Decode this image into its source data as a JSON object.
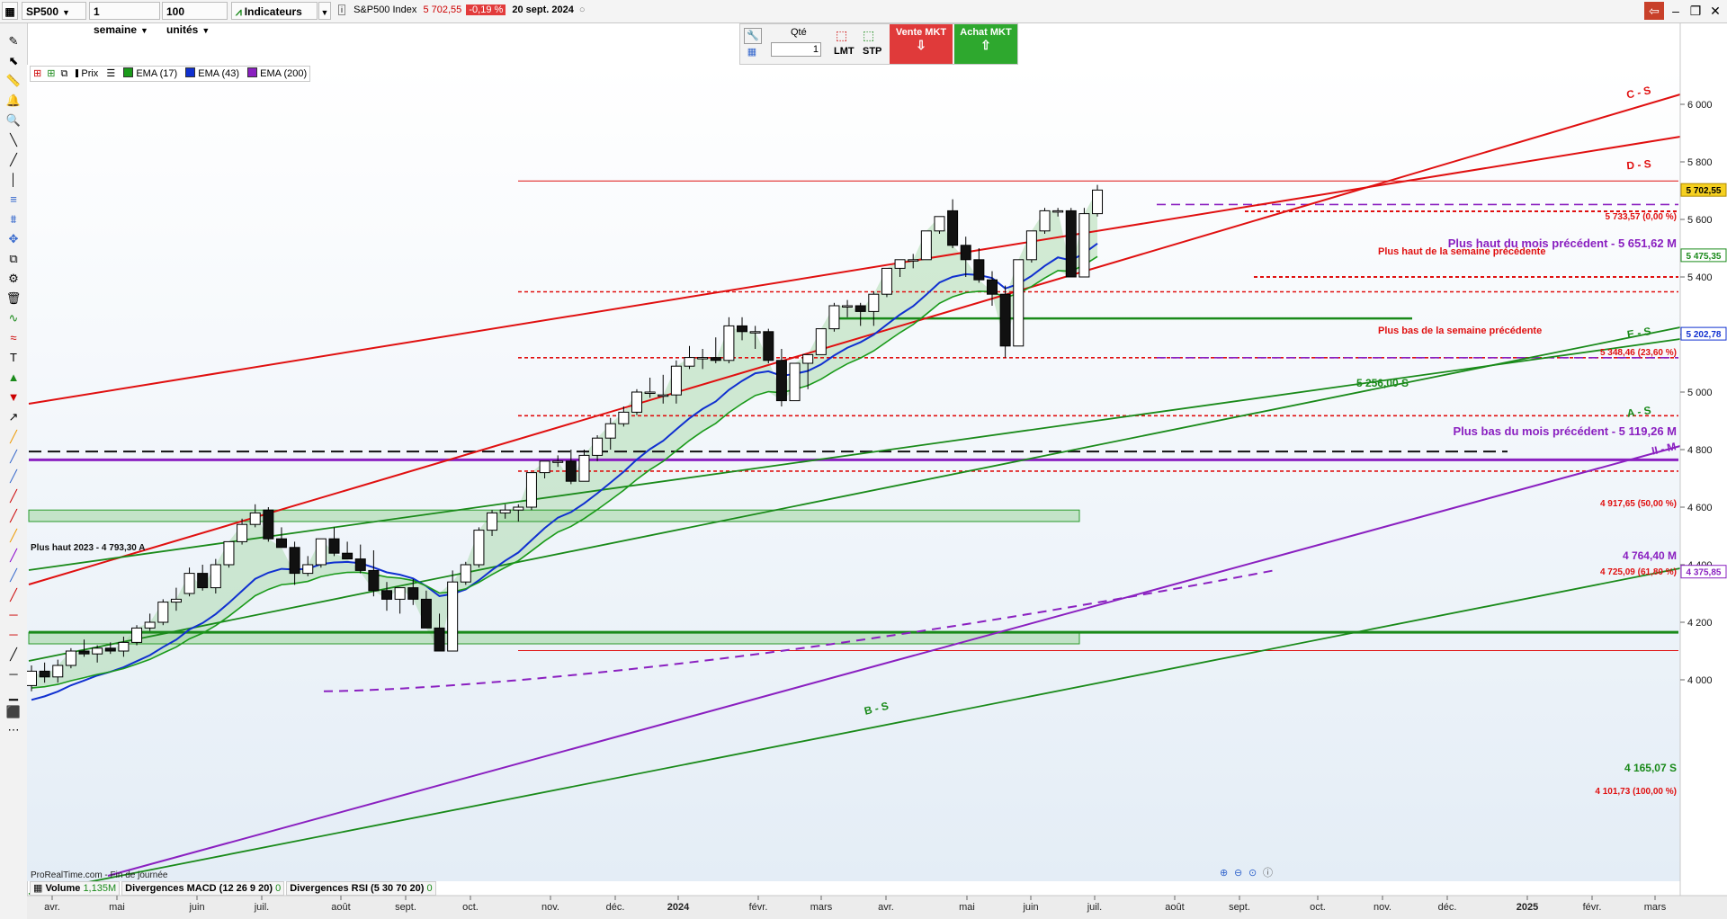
{
  "topbar": {
    "symbol": "SP500",
    "period": "1 semaine",
    "units": "100 unités",
    "indicators": "Indicateurs",
    "instrument_name": "S&P500 Index",
    "price": "5 702,55",
    "change": "-0,19 %",
    "date": "20 sept. 2024"
  },
  "order_panel": {
    "qty_label": "Qté",
    "qty_value": "1",
    "lmt": "LMT",
    "stp": "STP",
    "sell": "Vente MKT",
    "buy": "Achat MKT"
  },
  "legend": {
    "price": "Prix",
    "ema17": "EMA (17)",
    "ema43": "EMA (43)",
    "ema200": "EMA (200)"
  },
  "colors": {
    "ema17": "#1a9a1a",
    "ema43": "#1030d0",
    "ema200": "#8a20c0",
    "red": "#e01010",
    "accent_sell": "#e03a3a",
    "accent_buy": "#2ea82e"
  },
  "annotations": {
    "prev_month_high": "Plus haut du mois précédent - 5 651,62 M",
    "prev_week_high": "Plus haut de la semaine précédente",
    "prev_week_low": "Plus bas de la semaine précédente",
    "support_5256": "5 256,00 S",
    "prev_month_low": "Plus bas du mois précédent - 5 119,26 M",
    "high_2023": "Plus haut 2023 -  4 793,30 A",
    "level_4764": "4 764,40 M",
    "support_4165": "4 165,07 S",
    "fib0": "5 733,57 (0,00 %)",
    "fib236": "5 348,46 (23,60 %)",
    "fib50": "4 917,65 (50,00 %)",
    "fib618": "4 725,09 (61,80 %)",
    "fib100": "4 101,73 (100,00 %)",
    "line_cs": "C - S",
    "line_ds": "D - S",
    "line_es": "E - S",
    "line_as": "A - S",
    "line_bs": "B - S",
    "line_iim": "II - M"
  },
  "price_tags": {
    "last": "5 702,55",
    "ema17_value": "5 475,35",
    "ema43_value": "5 202,78",
    "ema200_value": "4 375,85"
  },
  "indicator_bar": {
    "volume_label": "Volume",
    "volume_value": "1,135M",
    "macd_label": "Divergences MACD (12 26 9 20)",
    "macd_value": "0",
    "rsi_label": "Divergences RSI (5 30 70 20)",
    "rsi_value": "0"
  },
  "footnote": "ProRealTime.com - Fin de journée",
  "y_ticks": [
    "6 000",
    "5 800",
    "5 600",
    "5 400",
    "5 200",
    "5 000",
    "4 800",
    "4 600",
    "4 400",
    "4 200",
    "4 000"
  ],
  "x_ticks": [
    "avr.",
    "mai",
    "juin",
    "juil.",
    "août",
    "sept.",
    "oct.",
    "nov.",
    "déc.",
    "2024",
    "févr.",
    "mars",
    "avr.",
    "mai",
    "juin",
    "juil.",
    "août",
    "sept.",
    "oct.",
    "nov.",
    "déc.",
    "2025",
    "févr.",
    "mars"
  ],
  "chart_data": {
    "type": "candlestick",
    "timeframe": "1 semaine",
    "ylim": [
      3930,
      6190
    ],
    "series_names": [
      "EMA (17)",
      "EMA (43)",
      "EMA (200)"
    ],
    "candles": [
      [
        3980,
        4050,
        3960,
        4030
      ],
      [
        4030,
        4060,
        3990,
        4010
      ],
      [
        4010,
        4070,
        3990,
        4050
      ],
      [
        4050,
        4110,
        4040,
        4100
      ],
      [
        4100,
        4140,
        4080,
        4090
      ],
      [
        4090,
        4120,
        4060,
        4110
      ],
      [
        4110,
        4130,
        4090,
        4100
      ],
      [
        4100,
        4150,
        4080,
        4130
      ],
      [
        4130,
        4190,
        4120,
        4180
      ],
      [
        4180,
        4230,
        4170,
        4200
      ],
      [
        4200,
        4280,
        4190,
        4270
      ],
      [
        4270,
        4320,
        4240,
        4280
      ],
      [
        4300,
        4390,
        4290,
        4370
      ],
      [
        4370,
        4400,
        4310,
        4320
      ],
      [
        4320,
        4420,
        4300,
        4400
      ],
      [
        4400,
        4480,
        4390,
        4480
      ],
      [
        4480,
        4560,
        4470,
        4540
      ],
      [
        4540,
        4610,
        4530,
        4580
      ],
      [
        4590,
        4600,
        4480,
        4490
      ],
      [
        4490,
        4530,
        4460,
        4460
      ],
      [
        4460,
        4480,
        4330,
        4370
      ],
      [
        4370,
        4430,
        4360,
        4400
      ],
      [
        4400,
        4470,
        4390,
        4490
      ],
      [
        4490,
        4530,
        4430,
        4440
      ],
      [
        4440,
        4480,
        4420,
        4420
      ],
      [
        4420,
        4470,
        4370,
        4380
      ],
      [
        4380,
        4450,
        4290,
        4310
      ],
      [
        4310,
        4340,
        4240,
        4280
      ],
      [
        4280,
        4320,
        4230,
        4320
      ],
      [
        4320,
        4350,
        4260,
        4280
      ],
      [
        4280,
        4310,
        4180,
        4180
      ],
      [
        4180,
        4230,
        4100,
        4100
      ],
      [
        4100,
        4380,
        4100,
        4340
      ],
      [
        4340,
        4410,
        4330,
        4400
      ],
      [
        4400,
        4530,
        4390,
        4520
      ],
      [
        4520,
        4590,
        4500,
        4580
      ],
      [
        4580,
        4610,
        4560,
        4590
      ],
      [
        4590,
        4610,
        4550,
        4600
      ],
      [
        4600,
        4720,
        4590,
        4720
      ],
      [
        4720,
        4760,
        4700,
        4760
      ],
      [
        4760,
        4780,
        4740,
        4760
      ],
      [
        4760,
        4800,
        4680,
        4690
      ],
      [
        4690,
        4800,
        4690,
        4780
      ],
      [
        4780,
        4850,
        4760,
        4840
      ],
      [
        4840,
        4910,
        4800,
        4890
      ],
      [
        4890,
        4950,
        4880,
        4930
      ],
      [
        4930,
        5010,
        4920,
        5000
      ],
      [
        5000,
        5050,
        4980,
        5000
      ],
      [
        4990,
        5060,
        4960,
        4990
      ],
      [
        4990,
        5110,
        4960,
        5090
      ],
      [
        5090,
        5160,
        5080,
        5120
      ],
      [
        5120,
        5150,
        5080,
        5120
      ],
      [
        5120,
        5190,
        5100,
        5110
      ],
      [
        5110,
        5260,
        5100,
        5230
      ],
      [
        5230,
        5260,
        5180,
        5210
      ],
      [
        5210,
        5230,
        5150,
        5210
      ],
      [
        5210,
        5220,
        5100,
        5110
      ],
      [
        5110,
        5150,
        4950,
        4970
      ],
      [
        4970,
        5100,
        4970,
        5100
      ],
      [
        5100,
        5130,
        5010,
        5130
      ],
      [
        5130,
        5220,
        5130,
        5220
      ],
      [
        5220,
        5310,
        5210,
        5300
      ],
      [
        5300,
        5320,
        5260,
        5300
      ],
      [
        5300,
        5310,
        5230,
        5280
      ],
      [
        5280,
        5350,
        5230,
        5340
      ],
      [
        5340,
        5420,
        5330,
        5430
      ],
      [
        5430,
        5450,
        5400,
        5460
      ],
      [
        5460,
        5480,
        5430,
        5460
      ],
      [
        5460,
        5560,
        5460,
        5560
      ],
      [
        5560,
        5610,
        5550,
        5610
      ],
      [
        5630,
        5670,
        5500,
        5510
      ],
      [
        5510,
        5540,
        5400,
        5460
      ],
      [
        5460,
        5500,
        5380,
        5390
      ],
      [
        5390,
        5420,
        5300,
        5340
      ],
      [
        5340,
        5370,
        5120,
        5160
      ],
      [
        5160,
        5450,
        5160,
        5460
      ],
      [
        5460,
        5560,
        5450,
        5560
      ],
      [
        5560,
        5640,
        5550,
        5630
      ],
      [
        5630,
        5640,
        5610,
        5630
      ],
      [
        5630,
        5640,
        5400,
        5400
      ],
      [
        5400,
        5640,
        5400,
        5620
      ],
      [
        5620,
        5720,
        5610,
        5702
      ]
    ],
    "levels": [
      {
        "label": "5 733,57 (0,00 %)",
        "value": 5733.57
      },
      {
        "label": "5 348,46 (23,60 %)",
        "value": 5348.46
      },
      {
        "label": "4 917,65 (50,00 %)",
        "value": 4917.65
      },
      {
        "label": "4 725,09 (61,80 %)",
        "value": 4725.09
      },
      {
        "label": "4 101,73 (100,00 %)",
        "value": 4101.73
      },
      {
        "label": "5 651,62 M",
        "value": 5651.62
      },
      {
        "label": "5 119,26 M",
        "value": 5119.26
      },
      {
        "label": "5 256,00 S",
        "value": 5256.0
      },
      {
        "label": "4 793,30 A",
        "value": 4793.3
      },
      {
        "label": "4 764,40 M",
        "value": 4764.4
      },
      {
        "label": "4 165,07 S",
        "value": 4165.07
      }
    ]
  }
}
